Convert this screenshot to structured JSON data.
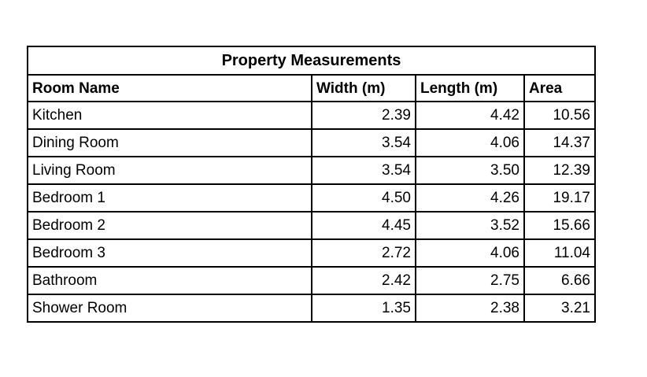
{
  "table": {
    "title": "Property Measurements",
    "columns": [
      "Room Name",
      "Width (m)",
      "Length (m)",
      "Area"
    ],
    "rows": [
      {
        "room": "Kitchen",
        "width": "2.39",
        "length": "4.42",
        "area": "10.56"
      },
      {
        "room": "Dining Room",
        "width": "3.54",
        "length": "4.06",
        "area": "14.37"
      },
      {
        "room": "Living Room",
        "width": "3.54",
        "length": "3.50",
        "area": "12.39"
      },
      {
        "room": "Bedroom 1",
        "width": "4.50",
        "length": "4.26",
        "area": "19.17"
      },
      {
        "room": "Bedroom 2",
        "width": "4.45",
        "length": "3.52",
        "area": "15.66"
      },
      {
        "room": "Bedroom 3",
        "width": "2.72",
        "length": "4.06",
        "area": "11.04"
      },
      {
        "room": "Bathroom",
        "width": "2.42",
        "length": "2.75",
        "area": "6.66"
      },
      {
        "room": "Shower Room",
        "width": "1.35",
        "length": "2.38",
        "area": "3.21"
      }
    ]
  }
}
